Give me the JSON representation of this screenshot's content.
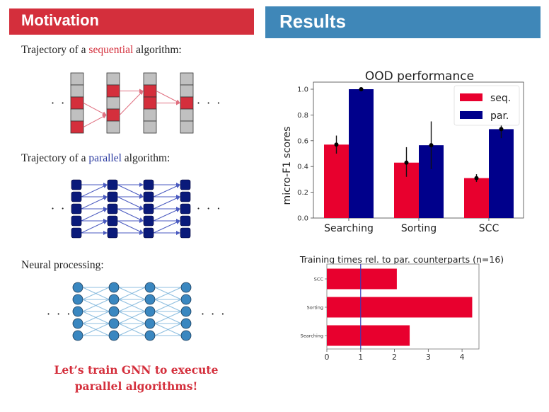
{
  "headers": {
    "motivation": "Motivation",
    "results": "Results"
  },
  "colors": {
    "motivation_red": "#d42f3c",
    "results_blue": "#3f87b8",
    "seq_red": "#e8002e",
    "par_navy": "#00008b",
    "cell_gray": "#c0c0c0",
    "node_navy": "#0a1a7a",
    "neural_blue": "#3a87c0"
  },
  "motivation": {
    "sequential": {
      "prefix": "Trajectory of a ",
      "highlight": "sequential",
      "suffix": " algorithm:"
    },
    "parallel": {
      "prefix": "Trajectory of a ",
      "highlight": "parallel",
      "suffix": " algorithm:"
    },
    "neural": {
      "label": "Neural processing:"
    },
    "ellipsis": "· · ·",
    "sequential_diagram": {
      "columns": 4,
      "rows": 5,
      "active_cells": [
        [
          2,
          4
        ],
        [
          1,
          3
        ],
        [
          1,
          2
        ],
        [
          2
        ]
      ],
      "arrows": [
        [
          0,
          2,
          1,
          3
        ],
        [
          0,
          4,
          1,
          3
        ],
        [
          1,
          1,
          2,
          1
        ],
        [
          1,
          3,
          2,
          1
        ],
        [
          2,
          1,
          3,
          2
        ],
        [
          2,
          2,
          3,
          2
        ]
      ]
    },
    "conclusion_line1": "Let’s train GNN to execute",
    "conclusion_line2": "parallel algorithms!"
  },
  "chart_data": [
    {
      "type": "bar",
      "title": "OOD performance",
      "xlabel": "",
      "ylabel": "micro-F1 scores",
      "categories": [
        "Searching",
        "Sorting",
        "SCC"
      ],
      "series": [
        {
          "name": "seq.",
          "values": [
            0.57,
            0.43,
            0.31
          ],
          "err_low": [
            0.5,
            0.32,
            0.28
          ],
          "err_high": [
            0.64,
            0.55,
            0.34
          ]
        },
        {
          "name": "par.",
          "values": [
            1.0,
            0.565,
            0.69
          ],
          "err_low": [
            1.0,
            0.38,
            0.62
          ],
          "err_high": [
            1.0,
            0.75,
            0.76
          ]
        }
      ],
      "ylim": [
        0,
        1.0
      ],
      "yticks": [
        "0.0",
        "0.2",
        "0.4",
        "0.6",
        "0.8",
        "1.0"
      ],
      "legend": "top-right",
      "grid": false
    },
    {
      "type": "bar",
      "orientation": "horizontal",
      "title": "Training times rel. to par. counterparts (n=16)",
      "categories": [
        "Searching",
        "Sorting",
        "SCC"
      ],
      "values": [
        2.45,
        4.3,
        2.07
      ],
      "xlim": [
        0,
        4.5
      ],
      "xticks": [
        "0",
        "1",
        "2",
        "3",
        "4"
      ],
      "reference_line": 1,
      "grid": false
    }
  ]
}
